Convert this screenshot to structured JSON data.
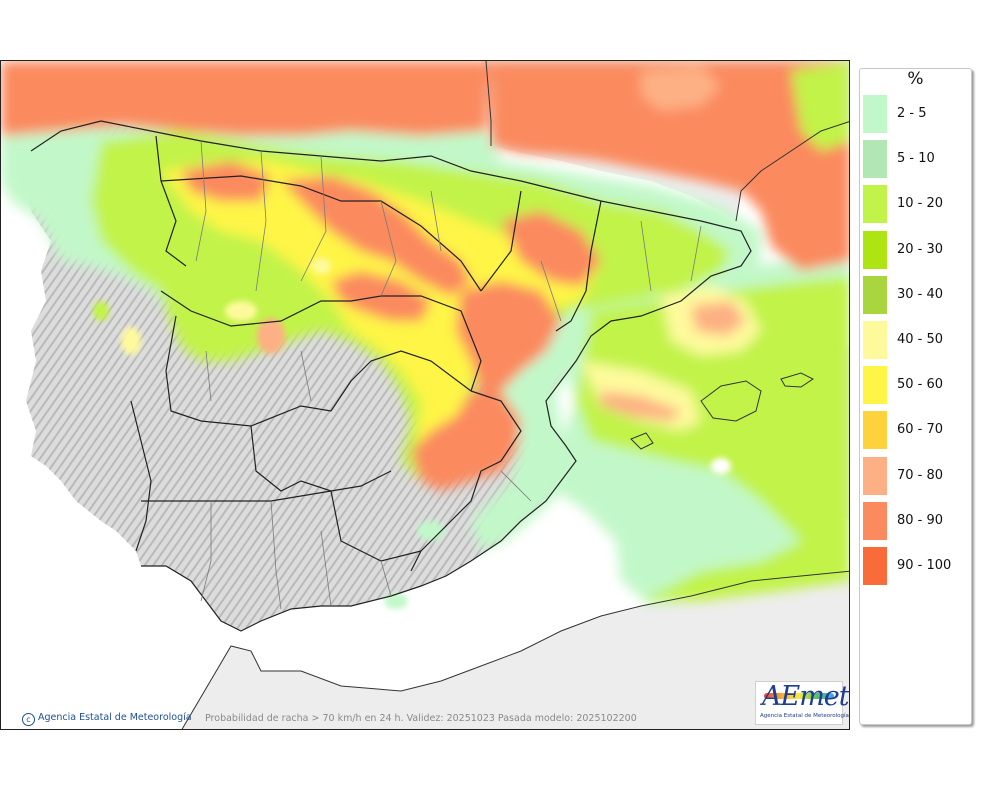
{
  "legend": {
    "unit": "%",
    "classes": [
      {
        "label": "2 - 5",
        "color": "#c2f8c9"
      },
      {
        "label": "5 - 10",
        "color": "#b2e6b2"
      },
      {
        "label": "10 - 20",
        "color": "#c2f34a"
      },
      {
        "label": "20 - 30",
        "color": "#aee412"
      },
      {
        "label": "30 - 40",
        "color": "#a9d63e"
      },
      {
        "label": "40 - 50",
        "color": "#fefa9c"
      },
      {
        "label": "50 - 60",
        "color": "#fef546"
      },
      {
        "label": "60 - 70",
        "color": "#fdd23c"
      },
      {
        "label": "70 - 80",
        "color": "#fdb084"
      },
      {
        "label": "80 - 90",
        "color": "#fb8a5e"
      },
      {
        "label": "90 - 100",
        "color": "#fa6b3a"
      }
    ]
  },
  "map": {
    "caption": "Probabilidad de racha > 70 km/h en 24 h. Validez: 20251023 Pasada modelo: 2025102200",
    "credit": "Agencia Estatal de Meteorología",
    "logo_text": "AEmet",
    "logo_subtext": "Agencia Estatal de Meteorología"
  }
}
